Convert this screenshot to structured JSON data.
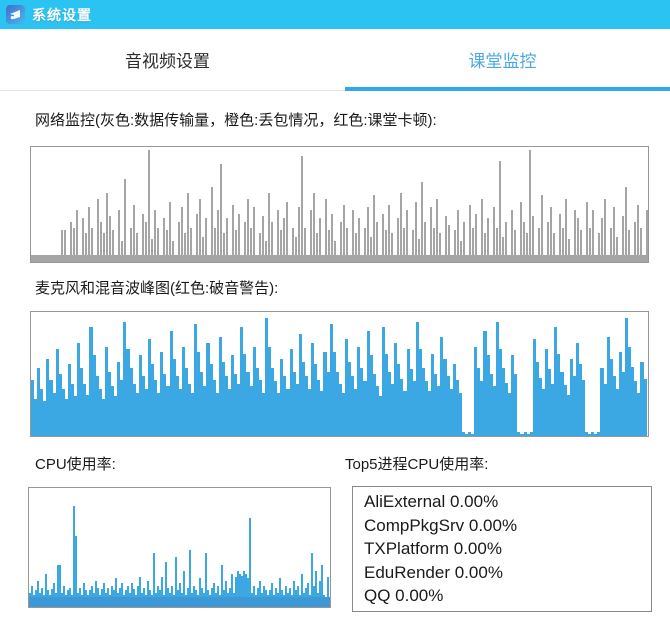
{
  "window": {
    "title": "系统设置"
  },
  "tabs": [
    {
      "label": "音视频设置",
      "active": false
    },
    {
      "label": "课堂监控",
      "active": true
    }
  ],
  "sections": {
    "network_label": "网络监控(灰色:数据传输量，橙色:丢包情况，红色:课堂卡顿):",
    "mic_label": "麦克风和混音波峰图(红色:破音警告):",
    "cpu_label": "CPU使用率:",
    "top5_label": "Top5进程CPU使用率:"
  },
  "colors": {
    "titlebar_bg": "#2bc3f2",
    "tab_active": "#4aa9e4",
    "tab_underline": "#2fa9e9",
    "network_bar": "#a5a5a5",
    "audio_bar": "#3ba8e3",
    "cpu_base": "#3d99d6",
    "chart_border": "#979797",
    "legend_gray": "#a5a5a5",
    "legend_orange": "orange",
    "legend_red": "red"
  },
  "top5": {
    "items": [
      {
        "name": "AliExternal",
        "usage": "0.00%"
      },
      {
        "name": "CompPkgSrv",
        "usage": "0.00%"
      },
      {
        "name": "TXPlatform",
        "usage": "0.00%"
      },
      {
        "name": "EduRender",
        "usage": "0.00%"
      },
      {
        "name": "QQ",
        "usage": "0.00%"
      }
    ]
  },
  "chart_data": [
    {
      "name": "network-monitor",
      "type": "bar",
      "title": "网络监控",
      "ylim": [
        0,
        100
      ],
      "grid": false,
      "color": "#a5a5a5",
      "base_pct": 6,
      "base_color": "#a5a5a5",
      "values": [
        4,
        5,
        4,
        6,
        5,
        4,
        5,
        6,
        5,
        4,
        28,
        28,
        6,
        35,
        30,
        45,
        5,
        38,
        25,
        48,
        30,
        5,
        55,
        35,
        25,
        60,
        40,
        28,
        5,
        45,
        18,
        72,
        6,
        30,
        50,
        25,
        6,
        42,
        35,
        97,
        20,
        45,
        30,
        6,
        38,
        28,
        52,
        18,
        6,
        35,
        48,
        25,
        60,
        30,
        6,
        42,
        55,
        22,
        38,
        6,
        65,
        30,
        45,
        85,
        25,
        38,
        6,
        50,
        28,
        42,
        6,
        35,
        55,
        30,
        48,
        6,
        25,
        40,
        18,
        60,
        35,
        6,
        45,
        28,
        38,
        52,
        6,
        30,
        22,
        48,
        92,
        30,
        6,
        45,
        60,
        25,
        38,
        6,
        55,
        28,
        42,
        18,
        6,
        35,
        50,
        30,
        6,
        45,
        25,
        38,
        6,
        30,
        48,
        22,
        58,
        35,
        6,
        42,
        28,
        50,
        25,
        6,
        38,
        60,
        30,
        45,
        6,
        28,
        52,
        20,
        70,
        35,
        6,
        48,
        30,
        55,
        25,
        6,
        40,
        32,
        6,
        28,
        45,
        18,
        35,
        6,
        50,
        30,
        42,
        6,
        55,
        25,
        38,
        6,
        48,
        30,
        88,
        22,
        35,
        6,
        45,
        28,
        6,
        52,
        35,
        25,
        97,
        40,
        6,
        30,
        58,
        6,
        35,
        48,
        25,
        6,
        42,
        30,
        55,
        20,
        6,
        45,
        38,
        28,
        6,
        52,
        30,
        45,
        6,
        25,
        38,
        55,
        6,
        30,
        48,
        22,
        6,
        40,
        65,
        28,
        6,
        35,
        50,
        30,
        6,
        45
      ]
    },
    {
      "name": "mic-mix-peak",
      "type": "bar",
      "title": "麦克风和混音波峰图",
      "ylim": [
        0,
        100
      ],
      "grid": false,
      "color": "#3ba8e3",
      "base_pct": 0,
      "values": [
        45,
        30,
        55,
        38,
        28,
        62,
        45,
        35,
        70,
        50,
        38,
        30,
        58,
        42,
        32,
        75,
        55,
        42,
        33,
        88,
        65,
        48,
        38,
        30,
        72,
        52,
        40,
        32,
        60,
        45,
        92,
        70,
        55,
        42,
        35,
        65,
        48,
        38,
        78,
        58,
        45,
        35,
        68,
        50,
        40,
        85,
        62,
        48,
        38,
        72,
        55,
        42,
        35,
        90,
        68,
        52,
        40,
        75,
        58,
        45,
        35,
        80,
        60,
        48,
        38,
        65,
        50,
        42,
        88,
        66,
        52,
        40,
        72,
        55,
        45,
        35,
        95,
        72,
        55,
        44,
        35,
        62,
        48,
        38,
        70,
        52,
        42,
        82,
        60,
        48,
        38,
        75,
        58,
        45,
        36,
        68,
        52,
        90,
        68,
        52,
        42,
        35,
        78,
        60,
        48,
        38,
        72,
        55,
        44,
        85,
        65,
        50,
        40,
        32,
        88,
        66,
        52,
        42,
        75,
        58,
        46,
        36,
        70,
        54,
        44,
        92,
        70,
        55,
        44,
        36,
        66,
        50,
        40,
        80,
        62,
        48,
        38,
        58,
        45,
        35,
        3,
        2,
        3,
        2,
        72,
        55,
        44,
        85,
        65,
        50,
        40,
        92,
        70,
        55,
        43,
        35,
        65,
        50,
        3,
        2,
        3,
        2,
        3,
        78,
        60,
        47,
        38,
        70,
        54,
        42,
        88,
        66,
        52,
        41,
        33,
        62,
        48,
        75,
        58,
        45,
        3,
        2,
        3,
        2,
        3,
        55,
        42,
        80,
        62,
        48,
        38,
        68,
        52,
        95,
        72,
        56,
        44,
        35,
        60,
        46
      ]
    },
    {
      "name": "cpu-usage",
      "type": "bar",
      "title": "CPU使用率",
      "ylim": [
        0,
        100
      ],
      "grid": false,
      "color": "#3ba8e3",
      "base_pct": 8,
      "base_color": "#3d99d6",
      "values": [
        12,
        18,
        10,
        14,
        22,
        12,
        16,
        10,
        28,
        14,
        10,
        15,
        20,
        12,
        35,
        35,
        12,
        18,
        10,
        14,
        16,
        10,
        85,
        60,
        12,
        16,
        10,
        20,
        14,
        10,
        14,
        18,
        12,
        22,
        16,
        10,
        15,
        20,
        12,
        16,
        10,
        18,
        14,
        24,
        12,
        16,
        20,
        10,
        14,
        18,
        12,
        20,
        15,
        10,
        18,
        25,
        12,
        16,
        10,
        22,
        14,
        10,
        45,
        12,
        18,
        14,
        25,
        10,
        38,
        16,
        12,
        18,
        10,
        42,
        14,
        20,
        12,
        30,
        10,
        16,
        48,
        12,
        18,
        14,
        10,
        24,
        16,
        12,
        45,
        14,
        10,
        16,
        20,
        12,
        18,
        10,
        35,
        14,
        22,
        12,
        16,
        28,
        12,
        25,
        30,
        28,
        26,
        30,
        28,
        24,
        75,
        12,
        18,
        10,
        16,
        22,
        12,
        18,
        14,
        10,
        14,
        20,
        10,
        16,
        12,
        24,
        14,
        10,
        18,
        12,
        16,
        10,
        22,
        14,
        18,
        10,
        28,
        12,
        16,
        20,
        10,
        45,
        18,
        30,
        12,
        22,
        35,
        10,
        2,
        25
      ]
    }
  ]
}
